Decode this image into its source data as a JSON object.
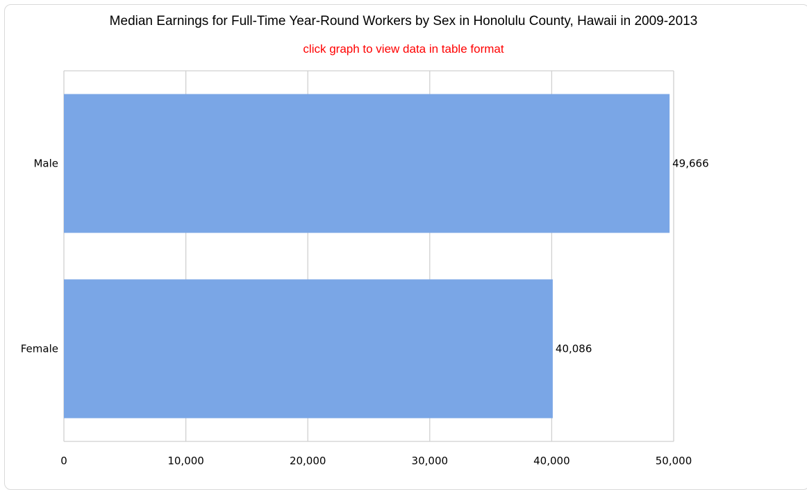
{
  "title": "Median Earnings for Full-Time Year-Round Workers by Sex in Honolulu County, Hawaii in 2009-2013",
  "subtitle": "click graph to view data in table format",
  "colors": {
    "bar": "#7aa6e6",
    "subtitle": "#ff0000",
    "grid": "#d0d0d0"
  },
  "chart_data": {
    "type": "bar",
    "orientation": "horizontal",
    "title": "Median Earnings for Full-Time Year-Round Workers by Sex in Honolulu County, Hawaii in 2009-2013",
    "categories": [
      "Male",
      "Female"
    ],
    "values": [
      49666,
      40086
    ],
    "value_labels": [
      "49,666",
      "40,086"
    ],
    "xlim": [
      0,
      50000
    ],
    "xticks": [
      0,
      10000,
      20000,
      30000,
      40000,
      50000
    ],
    "xtick_labels": [
      "0",
      "10,000",
      "20,000",
      "30,000",
      "40,000",
      "50,000"
    ],
    "xlabel": "",
    "ylabel": "",
    "grid": true,
    "legend": "none"
  }
}
